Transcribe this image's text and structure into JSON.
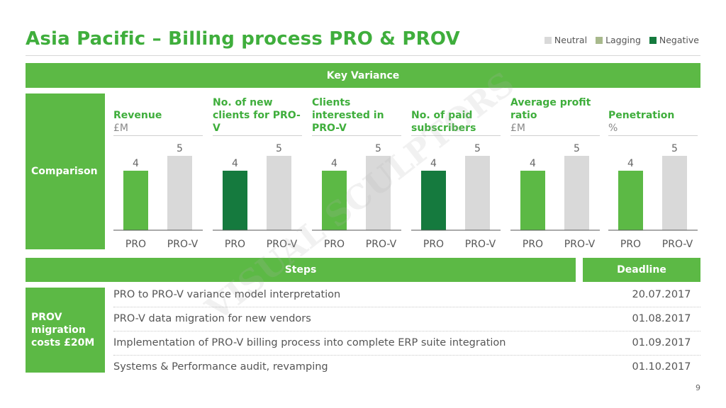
{
  "title": "Asia Pacific – Billing process PRO & PROV",
  "legend": [
    {
      "label": "Neutral",
      "color": "#d9d9d9"
    },
    {
      "label": "Lagging",
      "color": "#a8b98c"
    },
    {
      "label": "Negative",
      "color": "#157a3e"
    }
  ],
  "key_variance_label": "Key Variance",
  "comparison_label": "Comparison",
  "colors": {
    "pro_green": "#5cb945",
    "pro_dark": "#157a3e",
    "prov_grey": "#d9d9d9"
  },
  "chart_data": [
    {
      "type": "bar",
      "title": "Revenue",
      "unit": "£M",
      "categories": [
        "PRO",
        "PRO-V"
      ],
      "values": [
        4,
        5
      ],
      "status": [
        "green",
        "grey"
      ],
      "ylim": [
        0,
        5
      ]
    },
    {
      "type": "bar",
      "title": "No. of new clients for PRO-V",
      "unit": "",
      "categories": [
        "PRO",
        "PRO-V"
      ],
      "values": [
        4,
        5
      ],
      "status": [
        "dark",
        "grey"
      ],
      "ylim": [
        0,
        5
      ]
    },
    {
      "type": "bar",
      "title": "Clients interested in PRO-V",
      "unit": "",
      "categories": [
        "PRO",
        "PRO-V"
      ],
      "values": [
        4,
        5
      ],
      "status": [
        "green",
        "grey"
      ],
      "ylim": [
        0,
        5
      ]
    },
    {
      "type": "bar",
      "title": "No. of paid subscribers",
      "unit": "",
      "categories": [
        "PRO",
        "PRO-V"
      ],
      "values": [
        4,
        5
      ],
      "status": [
        "dark",
        "grey"
      ],
      "ylim": [
        0,
        5
      ]
    },
    {
      "type": "bar",
      "title": "Average profit ratio",
      "unit": "£M",
      "categories": [
        "PRO",
        "PRO-V"
      ],
      "values": [
        4,
        5
      ],
      "status": [
        "green",
        "grey"
      ],
      "ylim": [
        0,
        5
      ]
    },
    {
      "type": "bar",
      "title": "Penetration",
      "unit": "%",
      "categories": [
        "PRO",
        "PRO-V"
      ],
      "values": [
        4,
        5
      ],
      "status": [
        "green",
        "grey"
      ],
      "ylim": [
        0,
        5
      ]
    }
  ],
  "steps_header": "Steps",
  "deadline_header": "Deadline",
  "migration_label": "PROV migration costs £20M",
  "steps": [
    {
      "text": "PRO to PRO-V variance model interpretation",
      "deadline": "20.07.2017"
    },
    {
      "text": "PRO-V data migration for new vendors",
      "deadline": "01.08.2017"
    },
    {
      "text": "Implementation of PRO-V billing process into complete ERP suite integration",
      "deadline": "01.09.2017"
    },
    {
      "text": "Systems & Performance audit, revamping",
      "deadline": "01.10.2017"
    }
  ],
  "page_number": "9",
  "watermark": "VISUAL SCULPTORS"
}
